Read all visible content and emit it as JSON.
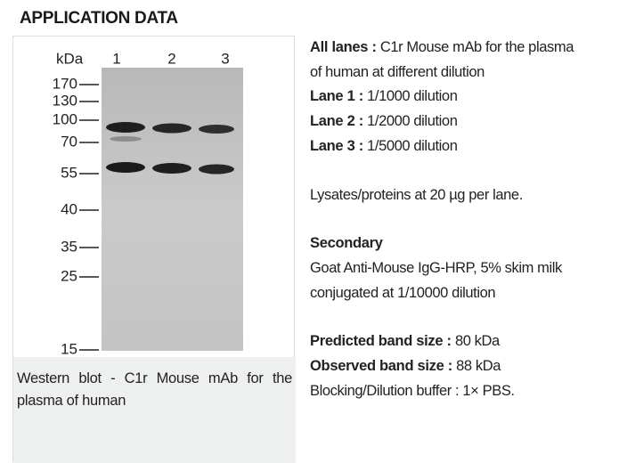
{
  "header": {
    "title": "APPLICATION DATA"
  },
  "figure": {
    "unit_label": "kDa",
    "lanes": [
      "1",
      "2",
      "3"
    ],
    "markers": [
      "170",
      "130",
      "100",
      "70",
      "55",
      "40",
      "35",
      "25",
      "15"
    ],
    "caption": "Western blot - C1r Mouse mAb for the plasma of human"
  },
  "details": {
    "lanes": [
      {
        "label": "All lanes :",
        "text": "C1r Mouse mAb for the plasma of human at different dilution"
      },
      {
        "label": "Lane 1 :",
        "text": "1/1000 dilution"
      },
      {
        "label": "Lane 2 :",
        "text": "1/2000 dilution"
      },
      {
        "label": "Lane 3 :",
        "text": "1/5000 dilution"
      }
    ],
    "loading": "Lysates/proteins at 20 µg per lane.",
    "secondary": {
      "title": "Secondary",
      "text": "Goat Anti-Mouse IgG-HRP, 5% skim milk conjugated at 1/10000 dilution"
    },
    "bands": [
      {
        "label": "Predicted band size :",
        "text": "80 kDa"
      },
      {
        "label": "Observed band size :",
        "text": "88 kDa"
      }
    ],
    "buffer": "Blocking/Dilution buffer : 1× PBS."
  }
}
